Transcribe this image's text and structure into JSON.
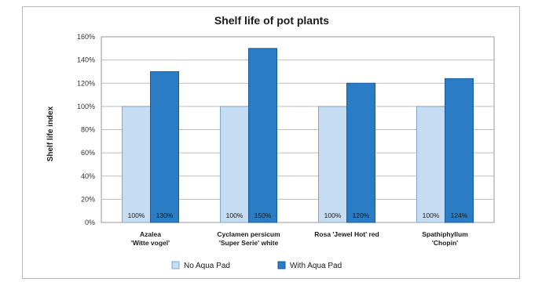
{
  "chart_data": {
    "type": "bar",
    "title": "Shelf life of pot plants",
    "ylabel": "Shelf life index",
    "xlabel": "",
    "ylim": [
      0,
      160
    ],
    "yticks": [
      "0%",
      "20%",
      "40%",
      "60%",
      "80%",
      "100%",
      "120%",
      "140%",
      "160%"
    ],
    "categories": [
      [
        "Azalea",
        "'Witte vogel'"
      ],
      [
        "Cyclamen persicum",
        "'Super Serie' white"
      ],
      [
        "Rosa 'Jewel Hot' red",
        ""
      ],
      [
        "Spathiphyllum",
        "'Chopin'"
      ]
    ],
    "series": [
      {
        "name": "No Aqua Pad",
        "values": [
          100,
          100,
          100,
          100
        ],
        "labels": [
          "100%",
          "100%",
          "100%",
          "100%"
        ],
        "color": "#c6dcf2",
        "stroke": "#7fa6cc"
      },
      {
        "name": "With Aqua Pad",
        "values": [
          130,
          150,
          120,
          124
        ],
        "labels": [
          "130%",
          "150%",
          "120%",
          "124%"
        ],
        "color": "#2a7cc4",
        "stroke": "#1a5c99"
      }
    ],
    "grid": true,
    "legend": "bottom"
  }
}
